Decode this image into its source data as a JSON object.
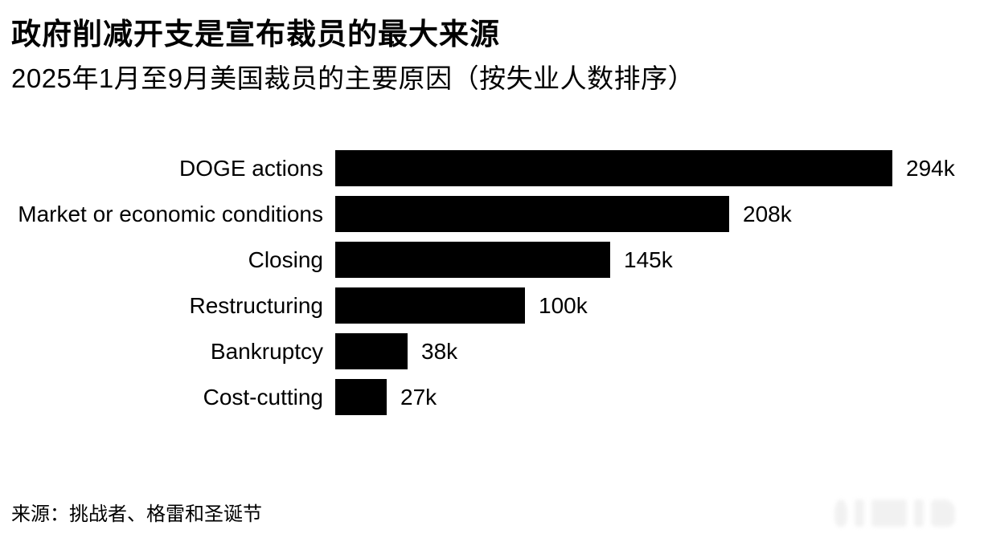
{
  "header": {
    "title": "政府削减开支是宣布裁员的最大来源",
    "subtitle": "2025年1月至9月美国裁员的主要原因（按失业人数排序）"
  },
  "chart_data": {
    "type": "bar",
    "orientation": "horizontal",
    "title": "政府削减开支是宣布裁员的最大来源",
    "subtitle": "2025年1月至9月美国裁员的主要原因（按失业人数排序）",
    "categories": [
      "DOGE actions",
      "Market or economic conditions",
      "Closing",
      "Restructuring",
      "Bankruptcy",
      "Cost-cutting"
    ],
    "values": [
      294,
      208,
      145,
      100,
      38,
      27
    ],
    "value_labels": [
      "294k",
      "208k",
      "145k",
      "100k",
      "38k",
      "27k"
    ],
    "value_suffix": "k",
    "xlim": [
      0,
      294
    ],
    "grid": false,
    "legend": false,
    "bar_color": "#000000"
  },
  "footer": {
    "source": "来源：挑战者、格雷和圣诞节"
  },
  "colors": {
    "background": "#ffffff",
    "bar": "#000000",
    "text": "#000000",
    "watermark": "#e7e7e7"
  }
}
